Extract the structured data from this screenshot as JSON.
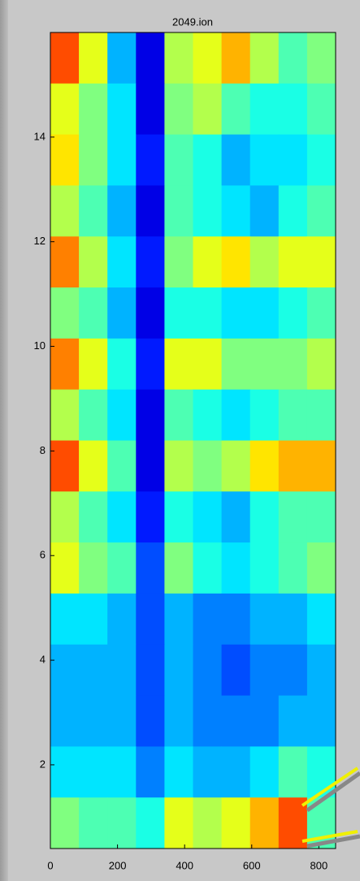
{
  "chart_data": {
    "type": "heatmap",
    "title": "2049.ion",
    "colormap": "jet",
    "xlim": [
      0,
      850
    ],
    "ylim": [
      0.4,
      16
    ],
    "xticks": [
      0,
      200,
      400,
      600,
      800
    ],
    "yticks": [
      2,
      4,
      6,
      8,
      10,
      12,
      14
    ],
    "z": [
      [
        0.8,
        0.6,
        0.3,
        0.1,
        0.55,
        0.6,
        0.7,
        0.55,
        0.45,
        0.5
      ],
      [
        0.6,
        0.5,
        0.35,
        0.1,
        0.5,
        0.55,
        0.45,
        0.4,
        0.4,
        0.45
      ],
      [
        0.65,
        0.5,
        0.35,
        0.15,
        0.45,
        0.4,
        0.3,
        0.35,
        0.35,
        0.4
      ],
      [
        0.55,
        0.45,
        0.3,
        0.1,
        0.45,
        0.4,
        0.35,
        0.3,
        0.4,
        0.45
      ],
      [
        0.75,
        0.55,
        0.35,
        0.15,
        0.5,
        0.6,
        0.65,
        0.55,
        0.6,
        0.6
      ],
      [
        0.5,
        0.45,
        0.3,
        0.1,
        0.4,
        0.4,
        0.35,
        0.35,
        0.4,
        0.45
      ],
      [
        0.75,
        0.6,
        0.4,
        0.15,
        0.6,
        0.6,
        0.5,
        0.5,
        0.5,
        0.55
      ],
      [
        0.55,
        0.45,
        0.35,
        0.1,
        0.45,
        0.4,
        0.35,
        0.4,
        0.45,
        0.45
      ],
      [
        0.8,
        0.6,
        0.45,
        0.1,
        0.55,
        0.5,
        0.55,
        0.65,
        0.7,
        0.7
      ],
      [
        0.55,
        0.45,
        0.35,
        0.15,
        0.4,
        0.35,
        0.3,
        0.4,
        0.45,
        0.45
      ],
      [
        0.6,
        0.5,
        0.45,
        0.2,
        0.5,
        0.4,
        0.35,
        0.4,
        0.45,
        0.5
      ],
      [
        0.35,
        0.35,
        0.3,
        0.2,
        0.3,
        0.25,
        0.25,
        0.3,
        0.3,
        0.35
      ],
      [
        0.3,
        0.3,
        0.3,
        0.2,
        0.3,
        0.25,
        0.2,
        0.25,
        0.25,
        0.3
      ],
      [
        0.3,
        0.3,
        0.3,
        0.2,
        0.3,
        0.25,
        0.25,
        0.25,
        0.3,
        0.3
      ],
      [
        0.35,
        0.35,
        0.35,
        0.25,
        0.35,
        0.3,
        0.3,
        0.35,
        0.45,
        0.4
      ],
      [
        0.5,
        0.45,
        0.45,
        0.4,
        0.6,
        0.55,
        0.6,
        0.7,
        0.8,
        0.45
      ]
    ]
  }
}
